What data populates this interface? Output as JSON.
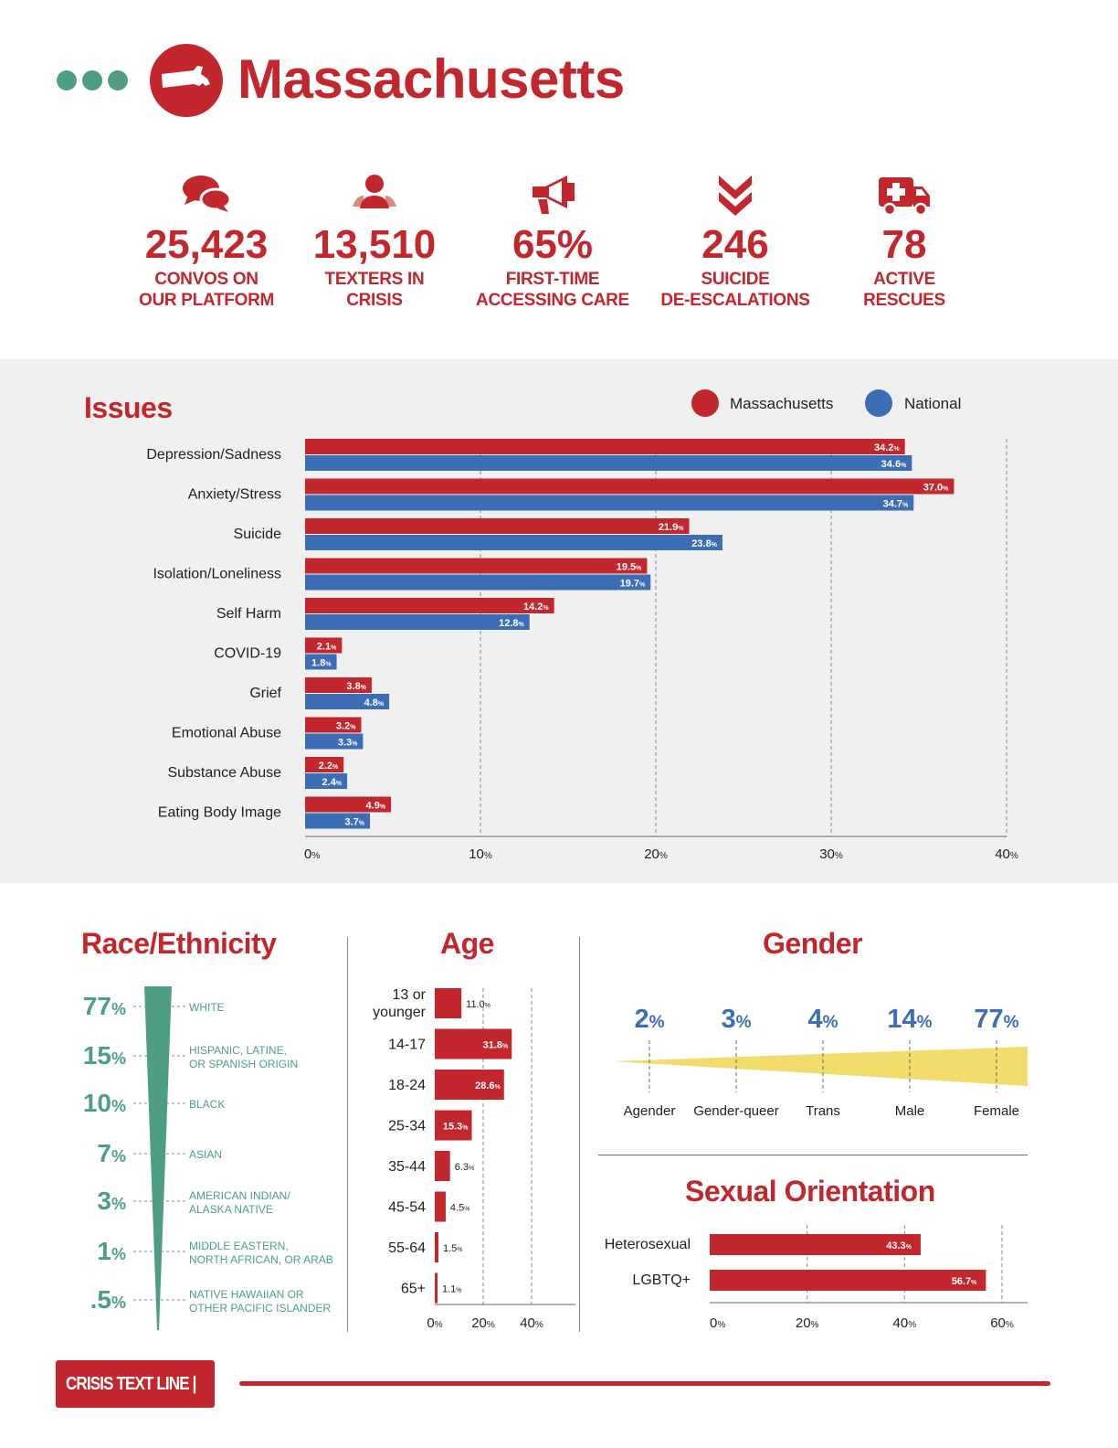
{
  "header": {
    "title": "Massachusetts",
    "colors": {
      "brand_red": "#c1272d",
      "teal": "#4e9e84",
      "blue": "#3d6db5",
      "yellow": "#f2dc6b"
    }
  },
  "stats": [
    {
      "icon": "chat-bubbles-icon",
      "value": "25,423",
      "label": "CONVOS ON\nOUR PLATFORM"
    },
    {
      "icon": "people-icon",
      "value": "13,510",
      "label": "TEXTERS IN\nCRISIS"
    },
    {
      "icon": "megaphone-icon",
      "value": "65%",
      "label": "FIRST-TIME\nACCESSING CARE"
    },
    {
      "icon": "chevron-down-double-icon",
      "value": "246",
      "label": "SUICIDE\nDE-ESCALATIONS"
    },
    {
      "icon": "ambulance-icon",
      "value": "78",
      "label": "ACTIVE\nRESCUES"
    }
  ],
  "issues": {
    "title": "Issues",
    "legend": [
      "Massachusetts",
      "National"
    ]
  },
  "race": {
    "title": "Race/Ethnicity"
  },
  "age": {
    "title": "Age"
  },
  "gender": {
    "title": "Gender"
  },
  "orientation": {
    "title": "Sexual Orientation"
  },
  "footer": {
    "brand": "CRISIS TEXT LINE |"
  },
  "chart_data": [
    {
      "type": "bar",
      "orientation": "horizontal",
      "title": "Issues",
      "categories": [
        "Depression/Sadness",
        "Anxiety/Stress",
        "Suicide",
        "Isolation/Loneliness",
        "Self Harm",
        "COVID-19",
        "Grief",
        "Emotional Abuse",
        "Substance Abuse",
        "Eating Body Image"
      ],
      "series": [
        {
          "name": "Massachusetts",
          "color": "#c1272d",
          "values": [
            34.2,
            37.0,
            21.9,
            19.5,
            14.2,
            2.1,
            3.8,
            3.2,
            2.2,
            4.9
          ],
          "labels": [
            "34.2%",
            "37.0%",
            "21.9%",
            "19.5%",
            "14.2%",
            "2.1%",
            "3.8%",
            "3.2%",
            "2.2%",
            "4.9%"
          ]
        },
        {
          "name": "National",
          "color": "#3d6db5",
          "values": [
            34.6,
            34.7,
            23.8,
            19.7,
            12.8,
            1.8,
            4.8,
            3.3,
            2.4,
            3.7
          ],
          "labels": [
            "34.6%",
            "34.7%",
            "23.8%",
            "19.7%",
            "12.8%",
            "1.8%",
            "4.8%",
            "3.3%",
            "2.4%",
            "3.7%"
          ]
        }
      ],
      "xlim": [
        0,
        40
      ],
      "xticks": [
        0,
        10,
        20,
        30,
        40
      ],
      "grid": true,
      "legend": "top-right"
    },
    {
      "type": "funnel",
      "title": "Race/Ethnicity",
      "categories": [
        "WHITE",
        "HISPANIC, LATINE,\nOR SPANISH ORIGIN",
        "BLACK",
        "ASIAN",
        "AMERICAN INDIAN/\nALASKA NATIVE",
        "MIDDLE EASTERN,\nNORTH AFRICAN, OR ARAB",
        "NATIVE HAWAIIAN OR\nOTHER PACIFIC ISLANDER"
      ],
      "values": [
        77,
        15,
        10,
        7,
        3,
        1,
        0.5
      ],
      "value_labels": [
        "77",
        "15",
        "10",
        "7",
        "3",
        "1",
        ".5"
      ],
      "unit": "%"
    },
    {
      "type": "bar",
      "orientation": "horizontal",
      "title": "Age",
      "categories": [
        "13 or\nyounger",
        "14-17",
        "18-24",
        "25-34",
        "35-44",
        "45-54",
        "55-64",
        "65+"
      ],
      "values": [
        11.0,
        31.8,
        28.6,
        15.3,
        6.3,
        4.5,
        1.5,
        1.1
      ],
      "labels": [
        "11.0%",
        "31.8%",
        "28.6%",
        "15.3%",
        "6.3%",
        "4.5%",
        "1.5%",
        "1.1%"
      ],
      "xlim": [
        0,
        40
      ],
      "xticks": [
        0,
        20,
        40
      ],
      "grid": true
    },
    {
      "type": "area",
      "title": "Gender",
      "categories": [
        "Agender",
        "Gender-queer",
        "Trans",
        "Male",
        "Female"
      ],
      "values": [
        2,
        3,
        4,
        14,
        77
      ],
      "value_labels": [
        "2",
        "3",
        "4",
        "14",
        "77"
      ],
      "unit": "%"
    },
    {
      "type": "bar",
      "orientation": "horizontal",
      "title": "Sexual Orientation",
      "categories": [
        "Heterosexual",
        "LGBTQ+"
      ],
      "values": [
        43.3,
        56.7
      ],
      "labels": [
        "43.3%",
        "56.7%"
      ],
      "xlim": [
        0,
        60
      ],
      "xticks": [
        0,
        20,
        40,
        60
      ],
      "grid": true
    }
  ]
}
